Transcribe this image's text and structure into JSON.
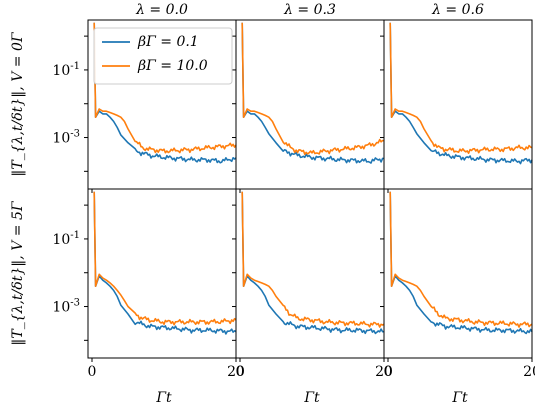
{
  "chart_data": {
    "type": "line",
    "layout_grid": "2x3",
    "column_titles": [
      "λ = 0.0",
      "λ = 0.3",
      "λ = 0.6"
    ],
    "row_ylabels": [
      "‖T_{λ,t/δt}‖, V = 0Γ",
      "‖T_{λ,t/δt}‖, V = 5Γ"
    ],
    "xlabel": "Γt",
    "xlim": [
      0,
      20
    ],
    "x_ticks": [
      0,
      20
    ],
    "x_tick_labels": [
      "0",
      "20"
    ],
    "y_scale": "log",
    "ylim": [
      3e-05,
      3
    ],
    "y_tick_labels": [
      "10^{-1}",
      "10^{-3}"
    ],
    "legend": {
      "placement": "top-right of first panel"
    },
    "series": [
      {
        "name": "βΓ = 0.1",
        "color": "#1f77b4",
        "panels": [
          {
            "x": [
              0.3,
              0.5,
              1,
              1.5,
              2,
              2.5,
              3,
              3.5,
              4,
              5,
              6,
              7,
              8,
              10,
              12,
              14,
              16,
              18,
              20
            ],
            "y": [
              2.5,
              0.004,
              0.006,
              0.005,
              0.005,
              0.004,
              0.003,
              0.002,
              0.0012,
              0.0007,
              0.0004,
              0.00035,
              0.0003,
              0.00026,
              0.00024,
              0.00022,
              0.00022,
              0.0002,
              0.00025
            ]
          },
          {
            "x": [
              0.3,
              0.5,
              1,
              1.5,
              2,
              2.5,
              3,
              3.5,
              4,
              5,
              6,
              7,
              8,
              10,
              12,
              14,
              16,
              18,
              20
            ],
            "y": [
              2.5,
              0.004,
              0.006,
              0.005,
              0.005,
              0.004,
              0.003,
              0.002,
              0.0013,
              0.0007,
              0.0004,
              0.00035,
              0.0003,
              0.00026,
              0.00024,
              0.00022,
              0.00021,
              0.0002,
              0.00024
            ]
          },
          {
            "x": [
              0.3,
              0.5,
              1,
              1.5,
              2,
              2.5,
              3,
              3.5,
              4,
              5,
              6,
              7,
              8,
              10,
              12,
              14,
              16,
              18,
              20
            ],
            "y": [
              2.5,
              0.004,
              0.006,
              0.005,
              0.005,
              0.004,
              0.003,
              0.002,
              0.0013,
              0.0007,
              0.0004,
              0.00035,
              0.0003,
              0.00026,
              0.00024,
              0.00022,
              0.00021,
              0.0002,
              0.00022
            ]
          },
          {
            "x": [
              0.3,
              0.5,
              1,
              1.5,
              2,
              2.5,
              3,
              3.5,
              4,
              5,
              6,
              7,
              8,
              10,
              12,
              14,
              16,
              18,
              20
            ],
            "y": [
              2.5,
              0.004,
              0.008,
              0.006,
              0.005,
              0.004,
              0.003,
              0.002,
              0.0011,
              0.0006,
              0.00035,
              0.0003,
              0.00026,
              0.00024,
              0.00022,
              0.0002,
              0.0002,
              0.00019,
              0.00018
            ]
          },
          {
            "x": [
              0.3,
              0.5,
              1,
              1.5,
              2,
              2.5,
              3,
              3.5,
              4,
              5,
              6,
              7,
              8,
              10,
              12,
              14,
              16,
              18,
              20
            ],
            "y": [
              2.5,
              0.004,
              0.008,
              0.006,
              0.005,
              0.004,
              0.003,
              0.002,
              0.0011,
              0.0006,
              0.00035,
              0.0003,
              0.00026,
              0.00024,
              0.00022,
              0.0002,
              0.0002,
              0.00019,
              0.00018
            ]
          },
          {
            "x": [
              0.3,
              0.5,
              1,
              1.5,
              2,
              2.5,
              3,
              3.5,
              4,
              5,
              6,
              7,
              8,
              10,
              12,
              14,
              16,
              18,
              20
            ],
            "y": [
              2.5,
              0.004,
              0.008,
              0.006,
              0.005,
              0.004,
              0.003,
              0.002,
              0.0011,
              0.0006,
              0.00035,
              0.0003,
              0.00026,
              0.00024,
              0.00022,
              0.0002,
              0.0002,
              0.00019,
              0.00018
            ]
          }
        ]
      },
      {
        "name": "βΓ = 10.0",
        "color": "#ff7f0e",
        "panels": [
          {
            "x": [
              0.3,
              0.5,
              1,
              1.5,
              2,
              2.5,
              3,
              3.5,
              4,
              4.5,
              5,
              6,
              7,
              8,
              10,
              12,
              14,
              16,
              18,
              20
            ],
            "y": [
              2.5,
              0.004,
              0.007,
              0.006,
              0.006,
              0.0055,
              0.005,
              0.0045,
              0.004,
              0.003,
              0.0018,
              0.0008,
              0.0005,
              0.00045,
              0.0004,
              0.00042,
              0.00045,
              0.0005,
              0.00055,
              0.0006
            ]
          },
          {
            "x": [
              0.3,
              0.5,
              1,
              1.5,
              2,
              2.5,
              3,
              3.5,
              4,
              4.5,
              5,
              6,
              7,
              8,
              10,
              12,
              14,
              16,
              18,
              20
            ],
            "y": [
              2.5,
              0.004,
              0.007,
              0.006,
              0.006,
              0.0055,
              0.005,
              0.0045,
              0.004,
              0.003,
              0.0018,
              0.0008,
              0.0005,
              0.0004,
              0.00035,
              0.0004,
              0.00045,
              0.0005,
              0.0006,
              0.0008
            ]
          },
          {
            "x": [
              0.3,
              0.5,
              1,
              1.5,
              2,
              2.5,
              3,
              3.5,
              4,
              4.5,
              5,
              6,
              7,
              8,
              10,
              12,
              14,
              16,
              18,
              20
            ],
            "y": [
              2.5,
              0.004,
              0.007,
              0.006,
              0.006,
              0.0055,
              0.005,
              0.0045,
              0.004,
              0.003,
              0.0018,
              0.0008,
              0.0005,
              0.00045,
              0.0004,
              0.00042,
              0.00045,
              0.00045,
              0.0005,
              0.0005
            ]
          },
          {
            "x": [
              0.3,
              0.5,
              1,
              1.5,
              2,
              2.5,
              3,
              3.5,
              4,
              4.5,
              5,
              6,
              7,
              8,
              10,
              12,
              14,
              16,
              18,
              20
            ],
            "y": [
              2.5,
              0.004,
              0.009,
              0.007,
              0.006,
              0.005,
              0.004,
              0.003,
              0.0022,
              0.0015,
              0.001,
              0.0006,
              0.00045,
              0.0004,
              0.00035,
              0.00035,
              0.00035,
              0.00035,
              0.00036,
              0.0004
            ]
          },
          {
            "x": [
              0.3,
              0.5,
              1,
              1.5,
              2,
              2.5,
              3,
              3.5,
              4,
              4.5,
              5,
              6,
              7,
              8,
              10,
              12,
              14,
              16,
              18,
              20
            ],
            "y": [
              2.5,
              0.004,
              0.009,
              0.007,
              0.006,
              0.0055,
              0.005,
              0.0045,
              0.004,
              0.003,
              0.002,
              0.001,
              0.0006,
              0.00045,
              0.0004,
              0.00035,
              0.00033,
              0.00032,
              0.0003,
              0.0003
            ]
          },
          {
            "x": [
              0.3,
              0.5,
              1,
              1.5,
              2,
              2.5,
              3,
              3.5,
              4,
              4.5,
              5,
              6,
              7,
              8,
              10,
              12,
              14,
              16,
              18,
              20
            ],
            "y": [
              2.5,
              0.004,
              0.009,
              0.007,
              0.006,
              0.0055,
              0.005,
              0.0045,
              0.004,
              0.003,
              0.002,
              0.001,
              0.0006,
              0.00045,
              0.0004,
              0.00035,
              0.00033,
              0.00032,
              0.0003,
              0.0003
            ]
          }
        ]
      }
    ]
  }
}
